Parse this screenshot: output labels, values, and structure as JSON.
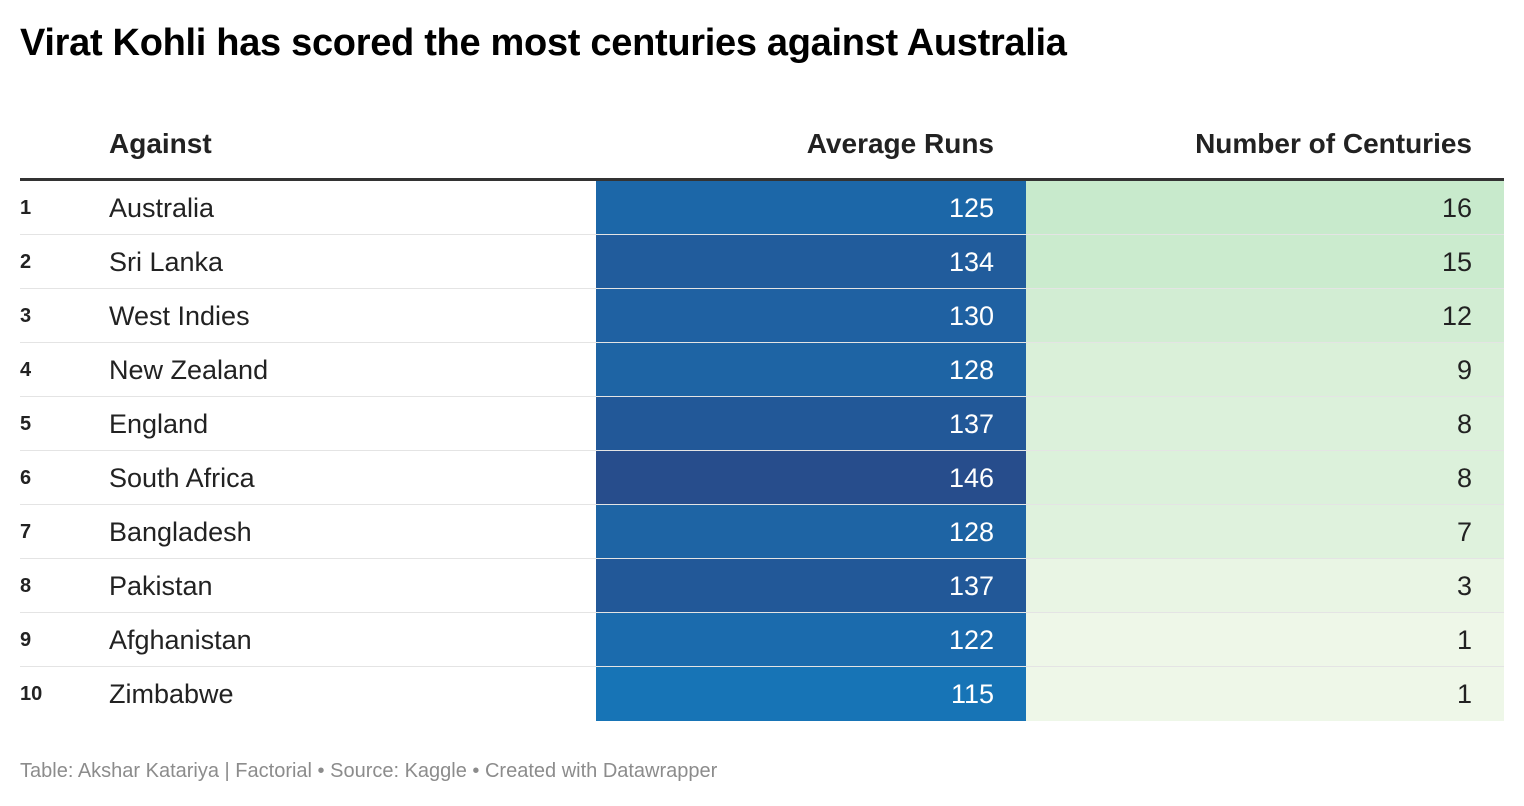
{
  "title": "Virat Kohli has scored the most centuries against Australia",
  "footer": "Table: Akshar Katariya | Factorial • Source: Kaggle • Created with Datawrapper",
  "colors": {
    "avg_low": "#1774b6",
    "avg_high": "#274d8c",
    "cent_low": "#eef7e8",
    "cent_high": "#c8eacc"
  },
  "chart_data": {
    "type": "table",
    "columns": [
      "",
      "Against",
      "Average Runs",
      "Number of Centuries"
    ],
    "rows": [
      {
        "rank": "1",
        "against": "Australia",
        "average_runs": 125,
        "centuries": 16
      },
      {
        "rank": "2",
        "against": "Sri Lanka",
        "average_runs": 134,
        "centuries": 15
      },
      {
        "rank": "3",
        "against": "West Indies",
        "average_runs": 130,
        "centuries": 12
      },
      {
        "rank": "4",
        "against": "New Zealand",
        "average_runs": 128,
        "centuries": 9
      },
      {
        "rank": "5",
        "against": "England",
        "average_runs": 137,
        "centuries": 8
      },
      {
        "rank": "6",
        "against": "South Africa",
        "average_runs": 146,
        "centuries": 8
      },
      {
        "rank": "7",
        "against": "Bangladesh",
        "average_runs": 128,
        "centuries": 7
      },
      {
        "rank": "8",
        "against": "Pakistan",
        "average_runs": 137,
        "centuries": 3
      },
      {
        "rank": "9",
        "against": "Afghanistan",
        "average_runs": 122,
        "centuries": 1
      },
      {
        "rank": "10",
        "against": "Zimbabwe",
        "average_runs": 115,
        "centuries": 1
      }
    ]
  }
}
